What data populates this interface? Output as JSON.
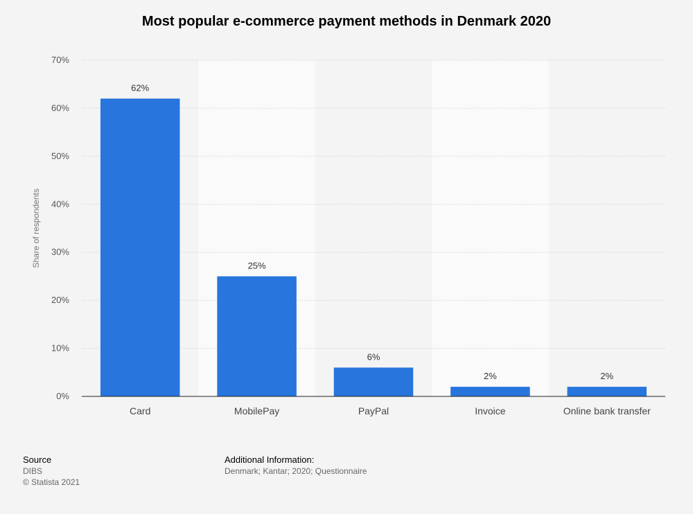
{
  "chart_data": {
    "type": "bar",
    "title": "Most popular e-commerce payment methods in Denmark 2020",
    "categories": [
      "Card",
      "MobilePay",
      "PayPal",
      "Invoice",
      "Online bank transfer"
    ],
    "values": [
      62,
      25,
      6,
      2,
      2
    ],
    "value_labels": [
      "62%",
      "25%",
      "6%",
      "2%",
      "2%"
    ],
    "ylabel": "Share of respondents",
    "ylim": [
      0,
      70
    ],
    "yticks": [
      0,
      10,
      20,
      30,
      40,
      50,
      60,
      70
    ],
    "ytick_labels": [
      "0%",
      "10%",
      "20%",
      "30%",
      "40%",
      "50%",
      "60%",
      "70%"
    ],
    "grid": true,
    "bar_color": "#2775dd"
  },
  "footer": {
    "source_heading": "Source",
    "source_lines": [
      "DIBS",
      "© Statista 2021"
    ],
    "info_heading": "Additional Information:",
    "info_text": "Denmark; Kantar; 2020; Questionnaire"
  }
}
